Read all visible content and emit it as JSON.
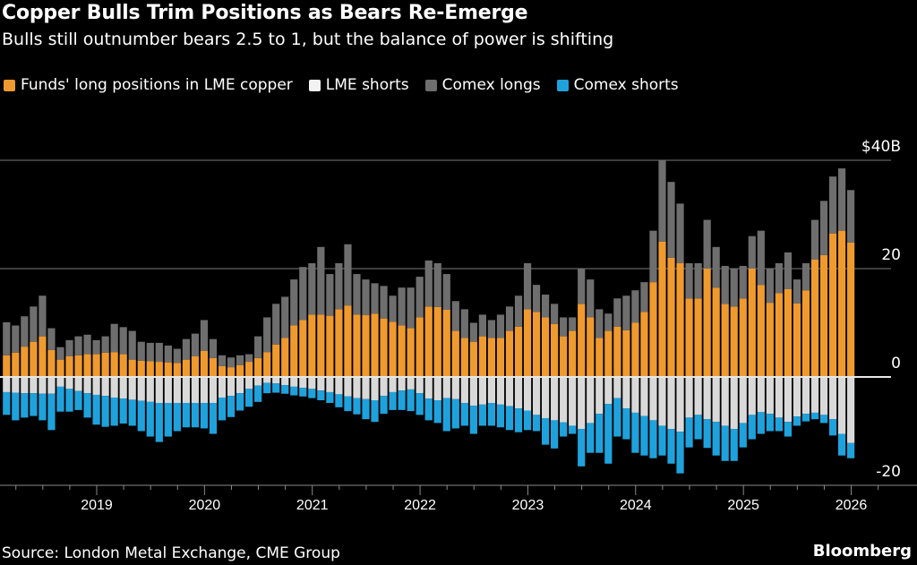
{
  "title": "Copper Bulls Trim Positions as Bears Re-Emerge",
  "subtitle": "Bulls still outnumber bears 2.5 to 1, but the balance of power is shifting",
  "source": "Source: London Metal Exchange, CME Group",
  "brand": "Bloomberg",
  "chart_data": {
    "type": "bar",
    "stacked": true,
    "legend_position": "top-left",
    "grid": true,
    "unit": "$B",
    "ylim": [
      -20,
      47
    ],
    "y_ticks": [
      {
        "value": 40,
        "label": "$40B"
      },
      {
        "value": 20,
        "label": "20"
      },
      {
        "value": 0,
        "label": "0"
      },
      {
        "value": -20,
        "label": "-20"
      }
    ],
    "x_ticks": [
      "2019",
      "2020",
      "2021",
      "2022",
      "2023",
      "2024",
      "2025",
      "2026"
    ],
    "dates": [
      "2018-03",
      "2018-04",
      "2018-05",
      "2018-06",
      "2018-07",
      "2018-08",
      "2018-09",
      "2018-10",
      "2018-11",
      "2018-12",
      "2019-01",
      "2019-02",
      "2019-03",
      "2019-04",
      "2019-05",
      "2019-06",
      "2019-07",
      "2019-08",
      "2019-09",
      "2019-10",
      "2019-11",
      "2019-12",
      "2020-01",
      "2020-02",
      "2020-03",
      "2020-04",
      "2020-05",
      "2020-06",
      "2020-07",
      "2020-08",
      "2020-09",
      "2020-10",
      "2020-11",
      "2020-12",
      "2021-01",
      "2021-02",
      "2021-03",
      "2021-04",
      "2021-05",
      "2021-06",
      "2021-07",
      "2021-08",
      "2021-09",
      "2021-10",
      "2021-11",
      "2021-12",
      "2022-01",
      "2022-02",
      "2022-03",
      "2022-04",
      "2022-05",
      "2022-06",
      "2022-07",
      "2022-08",
      "2022-09",
      "2022-10",
      "2022-11",
      "2022-12",
      "2023-01",
      "2023-02",
      "2023-03",
      "2023-04",
      "2023-05",
      "2023-06",
      "2023-07",
      "2023-08",
      "2023-09",
      "2023-10",
      "2023-11",
      "2023-12",
      "2024-01",
      "2024-02",
      "2024-03",
      "2024-04",
      "2024-05",
      "2024-06",
      "2024-07",
      "2024-08",
      "2024-09",
      "2024-10",
      "2024-11",
      "2024-12",
      "2025-01",
      "2025-02",
      "2025-03",
      "2025-04",
      "2025-05",
      "2025-06",
      "2025-07",
      "2025-08",
      "2025-09",
      "2025-10",
      "2025-11",
      "2025-12",
      "2026-01"
    ],
    "series": [
      {
        "name": "Funds' long positions in LME copper",
        "color": "#ef9a2f",
        "values": [
          4.0,
          4.5,
          5.6,
          6.5,
          7.5,
          5.0,
          3.2,
          3.8,
          4.0,
          4.2,
          4.2,
          4.5,
          4.6,
          4.2,
          3.2,
          3.0,
          2.9,
          2.8,
          2.7,
          2.6,
          3.2,
          3.8,
          4.8,
          3.5,
          2.0,
          1.8,
          2.2,
          2.8,
          3.5,
          4.6,
          6.0,
          7.2,
          9.5,
          10.5,
          11.5,
          11.5,
          11.3,
          12.5,
          13.2,
          11.5,
          11.4,
          11.7,
          10.8,
          10.2,
          9.5,
          9.0,
          11.0,
          13.0,
          12.9,
          12.4,
          8.5,
          7.2,
          6.5,
          7.5,
          7.2,
          7.2,
          8.5,
          9.3,
          12.5,
          12.0,
          11.0,
          9.8,
          7.5,
          8.5,
          13.5,
          11.0,
          7.2,
          8.5,
          9.3,
          8.6,
          10.0,
          12.0,
          17.5,
          25.0,
          22.0,
          21.0,
          14.5,
          14.5,
          20.0,
          16.5,
          13.5,
          13.0,
          14.5,
          20.0,
          17.0,
          13.7,
          15.5,
          16.2,
          13.6,
          16.0,
          21.7,
          22.5,
          26.5,
          27.0,
          24.8
        ]
      },
      {
        "name": "LME shorts",
        "color": "#d9d9d9",
        "values": [
          -2.8,
          -2.9,
          -3.0,
          -3.0,
          -3.1,
          -3.1,
          -1.8,
          -2.2,
          -2.6,
          -3.0,
          -3.3,
          -3.5,
          -3.8,
          -4.0,
          -4.2,
          -4.4,
          -4.6,
          -4.8,
          -4.8,
          -4.8,
          -4.8,
          -4.8,
          -4.8,
          -4.8,
          -3.8,
          -3.5,
          -3.0,
          -2.2,
          -1.6,
          -1.1,
          -1.2,
          -1.5,
          -1.8,
          -2.0,
          -2.2,
          -2.5,
          -2.8,
          -3.2,
          -3.6,
          -3.9,
          -4.1,
          -4.3,
          -3.5,
          -2.8,
          -2.5,
          -2.3,
          -3.0,
          -4.0,
          -4.3,
          -3.9,
          -4.1,
          -4.8,
          -5.3,
          -5.1,
          -4.8,
          -5.1,
          -5.4,
          -5.8,
          -6.2,
          -7.0,
          -7.6,
          -8.0,
          -8.4,
          -9.0,
          -9.6,
          -8.5,
          -6.8,
          -5.0,
          -3.9,
          -5.8,
          -6.6,
          -7.2,
          -8.0,
          -9.0,
          -9.6,
          -10.1,
          -7.5,
          -7.0,
          -7.8,
          -8.3,
          -9.0,
          -9.6,
          -8.5,
          -7.0,
          -6.5,
          -6.8,
          -7.5,
          -8.3,
          -7.3,
          -6.8,
          -6.6,
          -7.0,
          -7.8,
          -10.5,
          -12.2
        ]
      },
      {
        "name": "Comex longs",
        "color": "#6e6e6e",
        "values": [
          6.1,
          5.0,
          5.6,
          6.5,
          7.5,
          4.0,
          2.3,
          3.0,
          3.5,
          3.6,
          2.6,
          3.0,
          5.2,
          5.0,
          5.3,
          3.5,
          3.4,
          3.5,
          3.1,
          2.6,
          3.8,
          4.2,
          5.7,
          3.5,
          2.0,
          1.8,
          1.8,
          1.4,
          4.0,
          6.4,
          7.5,
          7.6,
          8.5,
          9.8,
          9.5,
          12.5,
          7.7,
          8.5,
          11.3,
          7.5,
          6.6,
          5.6,
          6.0,
          4.8,
          7.0,
          7.5,
          7.5,
          8.5,
          8.1,
          6.6,
          5.5,
          5.3,
          3.5,
          4.0,
          3.3,
          4.3,
          4.5,
          5.7,
          8.5,
          5.0,
          4.2,
          3.7,
          3.5,
          2.5,
          6.5,
          7.0,
          5.3,
          3.2,
          5.2,
          6.4,
          6.0,
          5.5,
          9.5,
          15.0,
          14.0,
          11.0,
          6.5,
          6.5,
          9.0,
          7.5,
          7.0,
          7.0,
          6.0,
          6.0,
          10.0,
          6.3,
          5.5,
          6.8,
          4.4,
          5.0,
          7.3,
          10.0,
          10.5,
          11.5,
          9.7
        ]
      },
      {
        "name": "Comex shorts",
        "color": "#1fa2dc",
        "values": [
          -4.2,
          -5.1,
          -4.5,
          -4.2,
          -4.9,
          -6.7,
          -4.6,
          -4.2,
          -3.5,
          -4.5,
          -5.5,
          -5.7,
          -5.2,
          -4.6,
          -4.8,
          -5.6,
          -6.4,
          -7.2,
          -6.2,
          -5.2,
          -4.5,
          -4.5,
          -4.7,
          -5.7,
          -4.2,
          -3.9,
          -3.2,
          -3.3,
          -3.0,
          -1.9,
          -1.7,
          -1.6,
          -1.6,
          -1.6,
          -1.7,
          -1.8,
          -2.0,
          -2.4,
          -2.7,
          -3.0,
          -3.7,
          -4.0,
          -3.3,
          -3.3,
          -3.6,
          -4.0,
          -4.0,
          -4.0,
          -4.2,
          -6.1,
          -5.4,
          -4.2,
          -5.2,
          -3.9,
          -4.2,
          -4.2,
          -4.4,
          -4.4,
          -3.6,
          -3.0,
          -4.9,
          -5.2,
          -2.6,
          -1.5,
          -6.9,
          -5.5,
          -7.2,
          -11.0,
          -7.1,
          -5.7,
          -7.4,
          -7.3,
          -7.0,
          -5.5,
          -6.4,
          -7.7,
          -5.5,
          -4.5,
          -5.3,
          -6.2,
          -6.5,
          -5.9,
          -4.5,
          -4.5,
          -4.0,
          -3.2,
          -2.5,
          -2.7,
          -1.7,
          -1.4,
          -1.2,
          -1.5,
          -3.0,
          -4.0,
          -2.8
        ]
      }
    ]
  }
}
